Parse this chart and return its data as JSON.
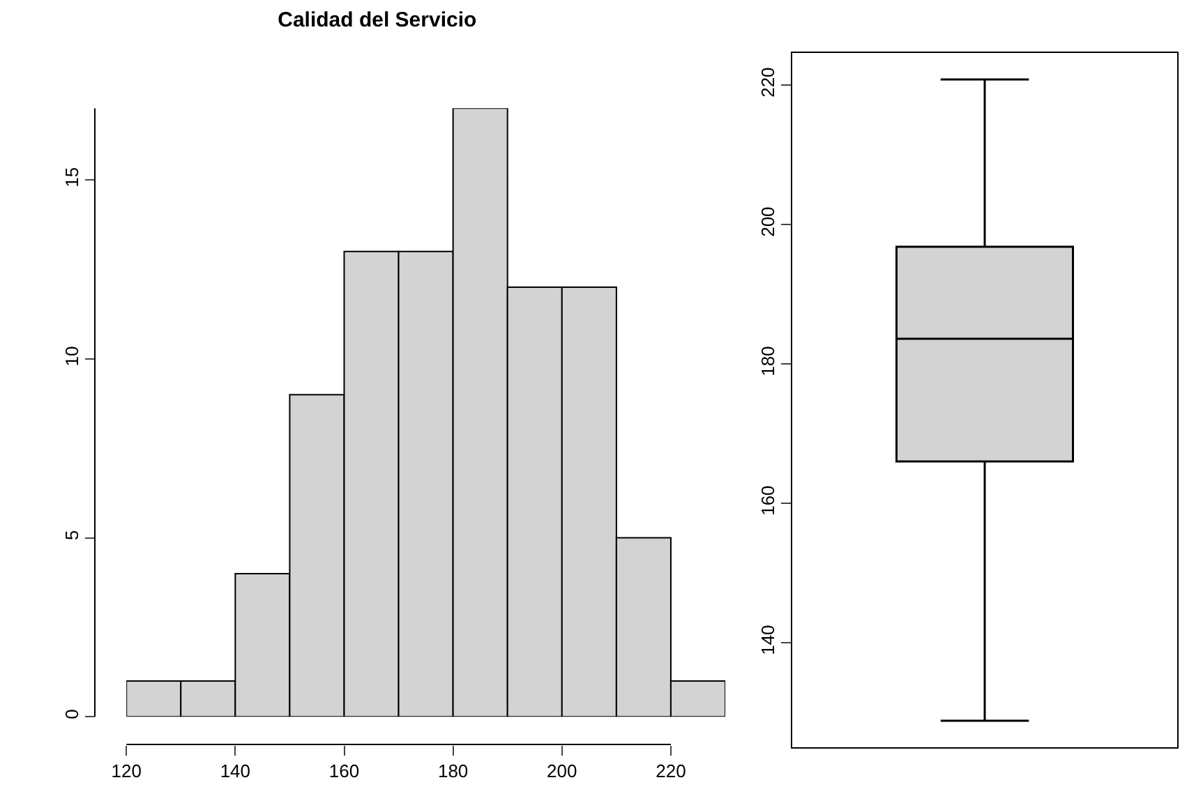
{
  "chart_data": [
    {
      "type": "histogram",
      "title": "Calidad del Servicio",
      "bins": [
        120,
        130,
        140,
        150,
        160,
        170,
        180,
        190,
        200,
        210,
        220,
        230
      ],
      "values": [
        1,
        1,
        4,
        9,
        13,
        13,
        17,
        12,
        12,
        5,
        1
      ],
      "color": "#d3d3d3",
      "xlim": [
        120,
        230
      ],
      "ylim": [
        0,
        17
      ],
      "xticks": [
        120,
        140,
        160,
        180,
        200,
        220
      ],
      "yticks": [
        0,
        5,
        10,
        15
      ],
      "grid": false
    },
    {
      "type": "box",
      "categories": [
        null
      ],
      "boxes": [
        {
          "low": 128.8,
          "q1": 166,
          "median": 183.6,
          "q3": 196.8,
          "high": 220.8
        }
      ],
      "color": "#d3d3d3",
      "ylim": [
        125,
        224.6
      ],
      "yticks": [
        140,
        160,
        180,
        200,
        220
      ],
      "grid": false,
      "tick_labels": "y"
    }
  ]
}
